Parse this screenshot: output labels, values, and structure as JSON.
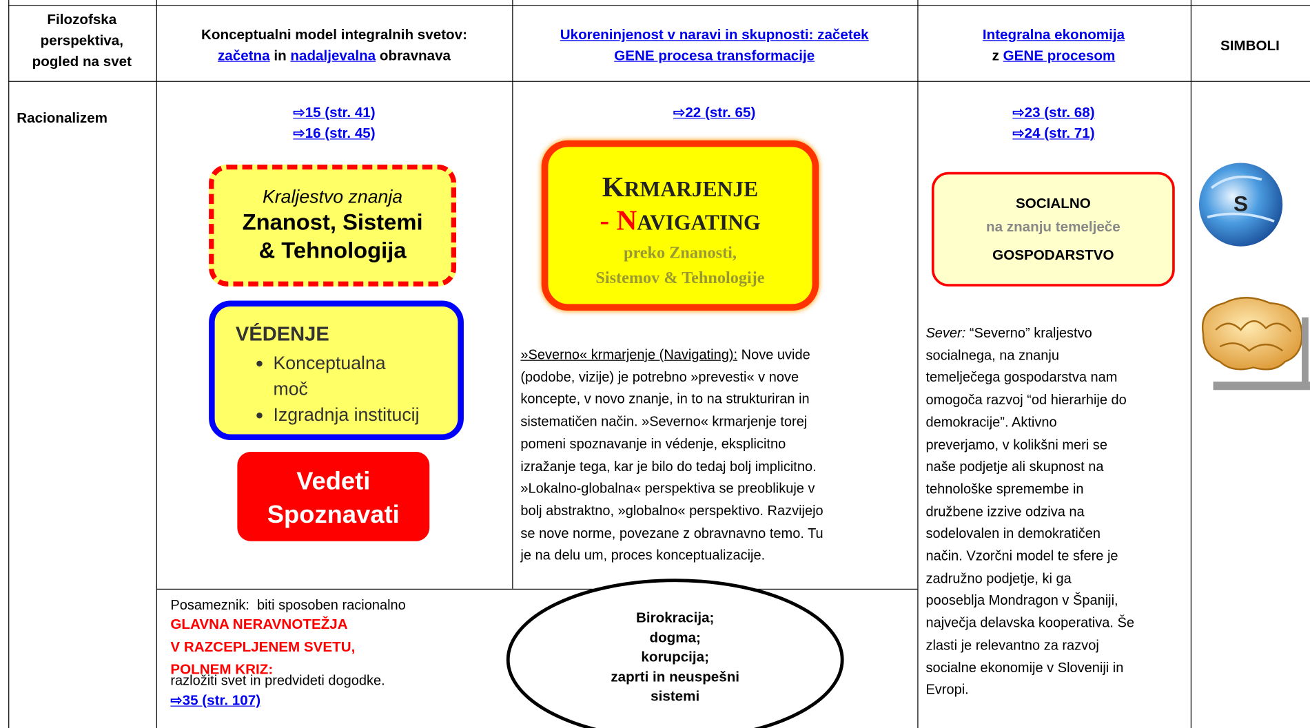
{
  "header": {
    "perspective": [
      "Filozofska",
      "perspektiva,",
      "pogled na svet"
    ],
    "model": {
      "line1": "Konceptualni model integralnih svetov:",
      "link1": "začetna",
      "mid": "in",
      "link2": "nadaljevalna",
      "end": "obravnava"
    },
    "rootedness": [
      "Ukoreninjenost v naravi in skupnosti: začetek",
      "GENE procesa transformacije"
    ],
    "economy": {
      "link1": "Integralna ekonomija",
      "pre": "z",
      "link2": "GENE procesom"
    },
    "symbols": "SIMBOLI"
  },
  "row": {
    "perspective": "Racionalizem",
    "model": {
      "refs": [
        "⇨15 (str. 41)",
        "⇨16 (str. 45)"
      ],
      "box1": {
        "italic": "Kraljestvo znanja",
        "bold": [
          "Znanost, Sistemi",
          "& Tehnologija"
        ]
      },
      "box2": {
        "title": "VÉDENJE",
        "items": [
          "Konceptualna moč",
          "Izgradnja institucij"
        ]
      },
      "box3": [
        "Vedeti",
        "Spoznavati"
      ],
      "note": [
        "Posameznik:  biti sposoben racionalno",
        "razložiti svet in predvideti dogodke."
      ]
    },
    "rootedness": {
      "ref": "⇨22 (str. 65)",
      "box": {
        "title_first": "K",
        "title_rest": "RMARJENJE",
        "nav_first": "- N",
        "nav_rest": "AVIGATING",
        "sub": [
          "preko Znanosti,",
          "Sistemov & Tehnologije"
        ]
      },
      "text": {
        "lead": "»Severno« krmarjenje (Navigating):",
        "lead_rest": "Nove uvide",
        "lines": [
          "(podobe, vizije) je potrebno »prevesti« v nove",
          "koncepte, v novo znanje, in to na strukturiran in",
          "sistematičen način. »Severno« krmarjenje torej",
          "pomeni spoznavanje in védenje, eksplicitno",
          "izražanje tega, kar je bilo do tedaj bolj implicitno.",
          "»Lokalno-globalna« perspektiva se preoblikuje v",
          "bolj abstraktno, »globalno« perspektivo. Razvijejo",
          "se nove norme, povezane z obravnavno temo. Tu",
          "je na delu um, proces konceptualizacije."
        ]
      }
    },
    "economy": {
      "refs": [
        "⇨23 (str. 68)",
        "⇨24 (str. 71)"
      ],
      "box": [
        "SOCIALNO",
        "na znanju temelječe",
        "GOSPODARSTVO"
      ],
      "text": {
        "lead": "Sever:",
        "lead_rest": "“Severno” kraljestvo",
        "lines": [
          "socialnega, na znanju",
          "temelječega gospodarstva nam",
          "omogoča razvoj “od hierarhije do",
          "demokracije”. Aktivno",
          "preverjamo, v kolikšni meri se",
          "naše podjetje ali skupnost na",
          "tehnološke spremembe in",
          "družbene izzive odziva na",
          "sodelovalen in demokratičen",
          "način. Vzorčni model te sfere je",
          "zadružno podjetje, ki ga",
          "pooseblja Mondragon v Španiji,",
          "največja delavska kooperativa. Še",
          "zlasti je relevantno za razvoj",
          "socialne ekonomije v Sloveniji in",
          "Evropi."
        ]
      }
    },
    "imbalance": {
      "lines": [
        "GLAVNA NERAVNOTEŽJA",
        "V RAZCEPLJENEM SVETU,",
        "POLNEM KRIZ:"
      ],
      "ref": "⇨35 (str. 107)",
      "ellipse": [
        "Birokracija;",
        "dogma;",
        "korupcija;",
        "zaprti in neuspešni",
        "sistemi"
      ]
    }
  },
  "symbols": {
    "globe_letter": "S"
  }
}
